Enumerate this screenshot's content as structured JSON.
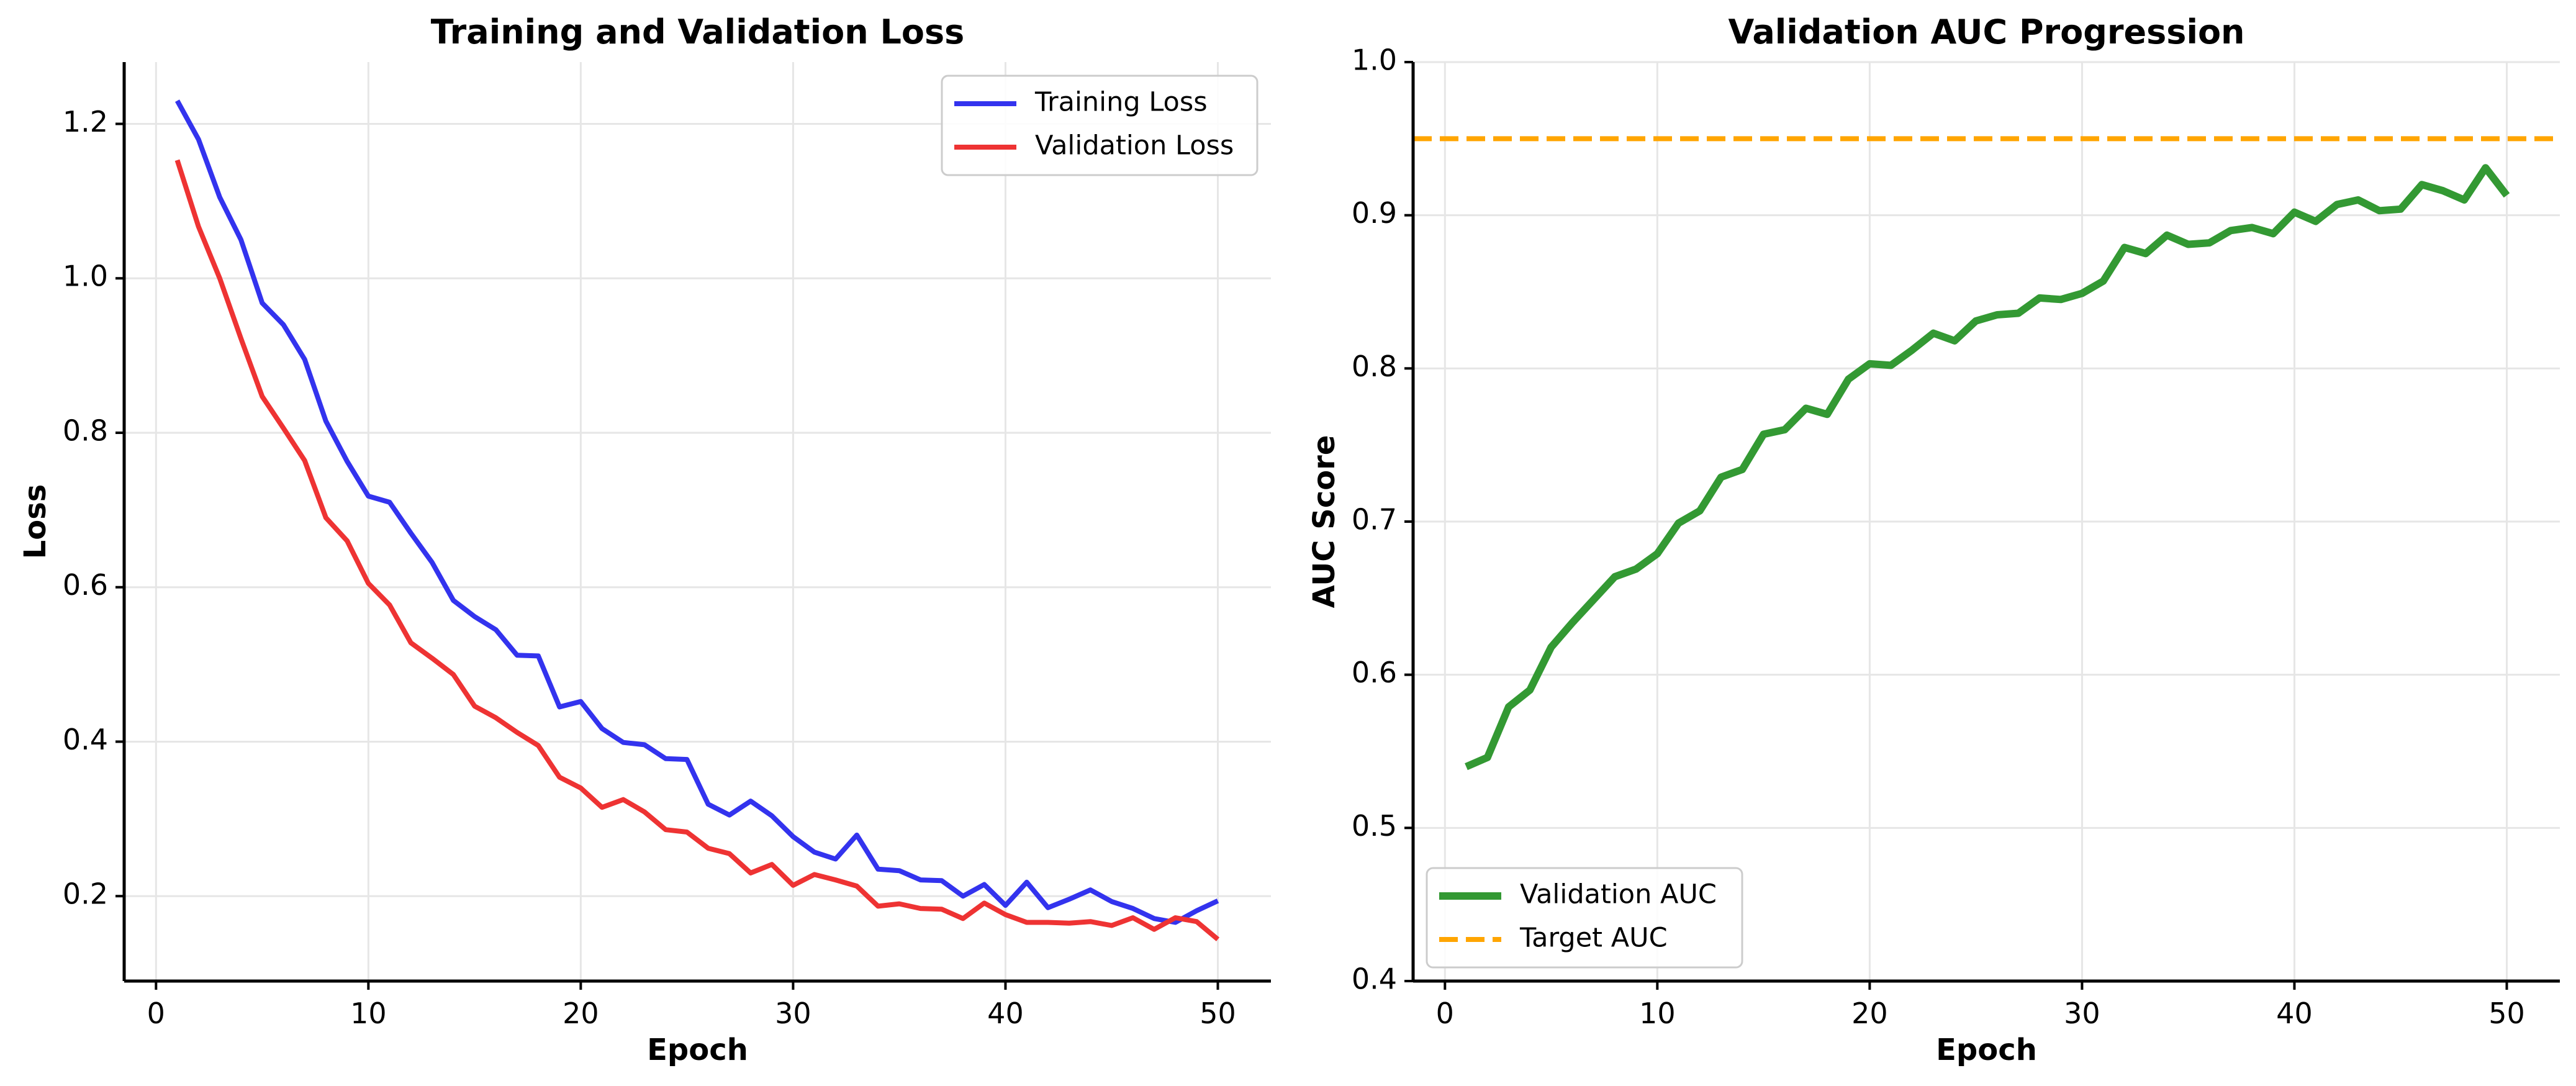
{
  "chart_data": [
    {
      "type": "line",
      "title": "Training and Validation Loss",
      "xlabel": "Epoch",
      "ylabel": "Loss",
      "xlim": [
        -1.5,
        52.5
      ],
      "ylim": [
        0.09,
        1.28
      ],
      "xticks": [
        0,
        10,
        20,
        30,
        40,
        50
      ],
      "yticks": [
        0.2,
        0.4,
        0.6,
        0.8,
        1.0,
        1.2
      ],
      "ytick_decimals": 1,
      "grid": true,
      "legend_position": "upper right",
      "series": [
        {
          "name": "Training Loss",
          "color": "#3333ee",
          "style": "solid",
          "x": [
            1,
            2,
            3,
            4,
            5,
            6,
            7,
            8,
            9,
            10,
            11,
            12,
            13,
            14,
            15,
            16,
            17,
            18,
            19,
            20,
            21,
            22,
            23,
            24,
            25,
            26,
            27,
            28,
            29,
            30,
            31,
            32,
            33,
            34,
            35,
            36,
            37,
            38,
            39,
            40,
            41,
            42,
            43,
            44,
            45,
            46,
            47,
            48,
            49,
            50
          ],
          "values": [
            1.23,
            1.18,
            1.105,
            1.05,
            0.968,
            0.94,
            0.895,
            0.815,
            0.763,
            0.718,
            0.71,
            0.67,
            0.632,
            0.583,
            0.562,
            0.545,
            0.512,
            0.511,
            0.445,
            0.452,
            0.417,
            0.399,
            0.396,
            0.378,
            0.377,
            0.319,
            0.305,
            0.323,
            0.304,
            0.277,
            0.257,
            0.248,
            0.279,
            0.235,
            0.233,
            0.221,
            0.22,
            0.2,
            0.215,
            0.188,
            0.218,
            0.185,
            0.196,
            0.208,
            0.193,
            0.184,
            0.171,
            0.166,
            0.181,
            0.194
          ]
        },
        {
          "name": "Validation Loss",
          "color": "#ee3333",
          "style": "solid",
          "x": [
            1,
            2,
            3,
            4,
            5,
            6,
            7,
            8,
            9,
            10,
            11,
            12,
            13,
            14,
            15,
            16,
            17,
            18,
            19,
            20,
            21,
            22,
            23,
            24,
            25,
            26,
            27,
            28,
            29,
            30,
            31,
            32,
            33,
            34,
            35,
            36,
            37,
            38,
            39,
            40,
            41,
            42,
            43,
            44,
            45,
            46,
            47,
            48,
            49,
            50
          ],
          "values": [
            1.153,
            1.067,
            1.0,
            0.922,
            0.847,
            0.806,
            0.764,
            0.69,
            0.66,
            0.605,
            0.577,
            0.528,
            0.508,
            0.487,
            0.446,
            0.431,
            0.412,
            0.395,
            0.354,
            0.34,
            0.315,
            0.325,
            0.309,
            0.286,
            0.283,
            0.262,
            0.255,
            0.23,
            0.241,
            0.214,
            0.228,
            0.221,
            0.213,
            0.187,
            0.19,
            0.184,
            0.183,
            0.171,
            0.191,
            0.176,
            0.166,
            0.166,
            0.165,
            0.167,
            0.162,
            0.172,
            0.157,
            0.172,
            0.167,
            0.144
          ]
        }
      ]
    },
    {
      "type": "line",
      "title": "Validation AUC Progression",
      "xlabel": "Epoch",
      "ylabel": "AUC Score",
      "xlim": [
        -1.5,
        52.5
      ],
      "ylim": [
        0.4,
        1.0
      ],
      "xticks": [
        0,
        10,
        20,
        30,
        40,
        50
      ],
      "yticks": [
        0.4,
        0.5,
        0.6,
        0.7,
        0.8,
        0.9,
        1.0
      ],
      "ytick_decimals": 1,
      "grid": true,
      "legend_position": "lower left",
      "series": [
        {
          "name": "Validation AUC",
          "color": "#339933",
          "style": "solid",
          "x": [
            1,
            2,
            3,
            4,
            5,
            6,
            7,
            8,
            9,
            10,
            11,
            12,
            13,
            14,
            15,
            16,
            17,
            18,
            19,
            20,
            21,
            22,
            23,
            24,
            25,
            26,
            27,
            28,
            29,
            30,
            31,
            32,
            33,
            34,
            35,
            36,
            37,
            38,
            39,
            40,
            41,
            42,
            43,
            44,
            45,
            46,
            47,
            48,
            49,
            50
          ],
          "values": [
            0.54,
            0.546,
            0.579,
            0.59,
            0.618,
            0.634,
            0.649,
            0.664,
            0.669,
            0.679,
            0.699,
            0.707,
            0.729,
            0.734,
            0.757,
            0.76,
            0.774,
            0.77,
            0.793,
            0.803,
            0.802,
            0.812,
            0.823,
            0.818,
            0.831,
            0.835,
            0.836,
            0.846,
            0.845,
            0.849,
            0.857,
            0.879,
            0.875,
            0.887,
            0.881,
            0.882,
            0.89,
            0.892,
            0.888,
            0.902,
            0.896,
            0.907,
            0.91,
            0.903,
            0.904,
            0.92,
            0.916,
            0.91,
            0.931,
            0.913
          ]
        },
        {
          "name": "Target AUC",
          "color": "#ffa500",
          "style": "dashed",
          "hline": 0.95
        }
      ]
    }
  ]
}
